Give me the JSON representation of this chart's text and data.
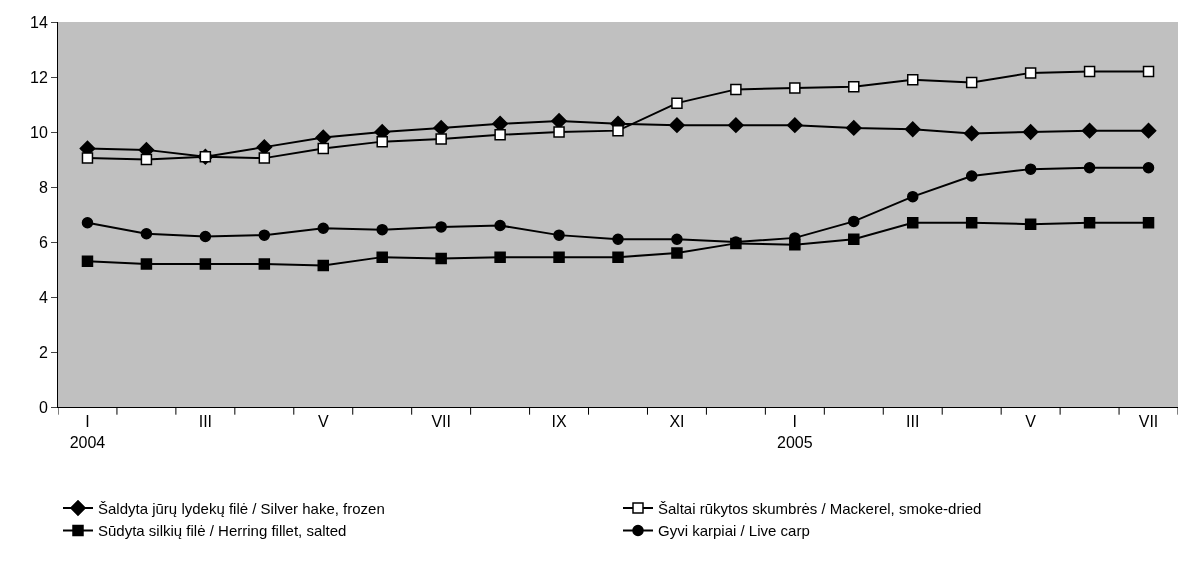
{
  "chart_data": {
    "type": "line",
    "categories": [
      "I\n2004",
      null,
      "III",
      null,
      "V",
      null,
      "VII",
      null,
      "IX",
      null,
      "XI",
      null,
      "I\n2005",
      null,
      "III",
      null,
      "V",
      null,
      "VII"
    ],
    "series": [
      {
        "name": "Šaldyta jūrų lydekų filė / Silver hake, frozen",
        "color": "#000000",
        "marker": "diamond",
        "values": [
          9.4,
          9.35,
          9.1,
          9.45,
          9.8,
          10.0,
          10.15,
          10.3,
          10.4,
          10.3,
          10.25,
          10.25,
          10.25,
          10.15,
          10.1,
          9.95,
          10.0,
          10.05,
          10.05
        ]
      },
      {
        "name": "Šaltai rūkytos skumbrės / Mackerel, smoke-dried",
        "color": "#000000",
        "marker": "square",
        "colors": [
          "#ffffff",
          "#ffffff",
          "#ffffff",
          "#ffffff",
          "#ffffff",
          "#ffffff",
          "#ffffff",
          "#ffffff",
          "#ffffff",
          "#ffffff",
          "#ffffff",
          "#ffffff",
          "#ffffff",
          "#ffffff",
          "#ffffff",
          "#ffffff",
          "#ffffff",
          "#ffffff",
          "#ffffff"
        ],
        "values": [
          9.05,
          9.0,
          9.1,
          9.05,
          9.4,
          9.65,
          9.75,
          9.9,
          10.0,
          10.05,
          11.05,
          11.55,
          11.6,
          11.65,
          11.9,
          11.8,
          12.15,
          12.2,
          12.2
        ]
      },
      {
        "name": "Sūdyta silkių filė / Herring fillet, salted",
        "color": "#000000",
        "marker": "square",
        "values": [
          5.3,
          5.2,
          5.2,
          5.2,
          5.15,
          5.45,
          5.4,
          5.45,
          5.45,
          5.45,
          5.6,
          5.95,
          5.9,
          6.1,
          6.7,
          6.7,
          6.65,
          6.7,
          6.7
        ]
      },
      {
        "name": "Gyvi karpiai / Live carp",
        "color": "#000000",
        "marker": "circle",
        "values": [
          6.7,
          6.3,
          6.2,
          6.25,
          6.5,
          6.45,
          6.55,
          6.6,
          6.25,
          6.1,
          6.1,
          6.0,
          6.15,
          6.75,
          7.65,
          8.4,
          8.65,
          8.7,
          8.7
        ]
      }
    ],
    "ylim": [
      0,
      14
    ],
    "yticks": [
      0,
      2,
      4,
      6,
      8,
      10,
      12,
      14
    ],
    "grid": false,
    "legend": "bottom",
    "line_style": "solid"
  }
}
